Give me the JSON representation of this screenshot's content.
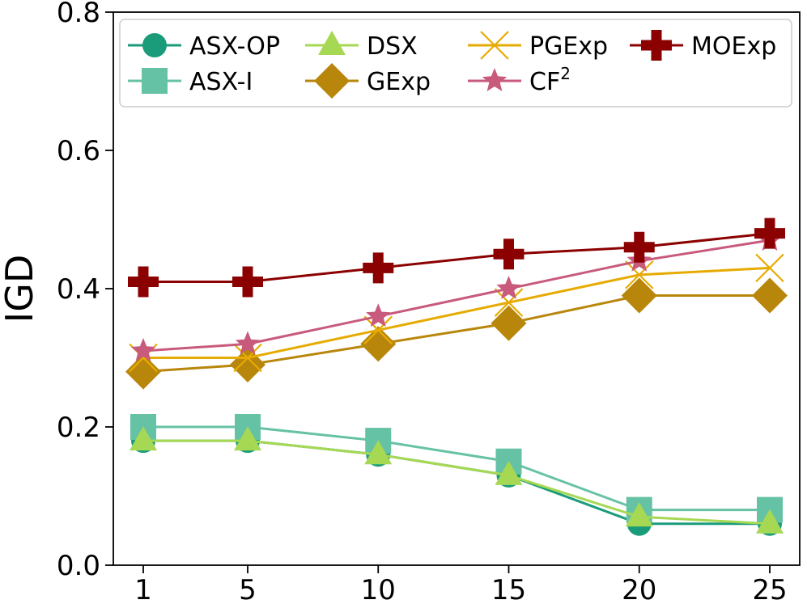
{
  "chart_data": {
    "type": "line",
    "title": "",
    "xlabel": "",
    "ylabel": "IGD",
    "x": [
      1,
      5,
      10,
      15,
      20,
      25
    ],
    "x_tick_labels": [
      "1",
      "5",
      "10",
      "15",
      "20",
      "25"
    ],
    "ylim": [
      0.0,
      0.8
    ],
    "y_ticks": [
      0.0,
      0.2,
      0.4,
      0.6,
      0.8
    ],
    "y_tick_labels": [
      "0.0",
      "0.2",
      "0.4",
      "0.6",
      "0.8"
    ],
    "grid": false,
    "legend_position": "top",
    "series": [
      {
        "name": "ASX-OP",
        "legend_sup": "",
        "color": "#1a9c7b",
        "marker": "circle",
        "values": [
          0.18,
          0.18,
          0.16,
          0.13,
          0.06,
          0.06
        ]
      },
      {
        "name": "ASX-I",
        "legend_sup": "",
        "color": "#66c2a5",
        "marker": "square",
        "values": [
          0.2,
          0.2,
          0.18,
          0.15,
          0.08,
          0.08
        ]
      },
      {
        "name": "DSX",
        "legend_sup": "",
        "color": "#a6d854",
        "marker": "triangle",
        "values": [
          0.18,
          0.18,
          0.16,
          0.13,
          0.07,
          0.06
        ]
      },
      {
        "name": "GExp",
        "legend_sup": "",
        "color": "#b8860b",
        "marker": "diamond",
        "values": [
          0.28,
          0.29,
          0.32,
          0.35,
          0.39,
          0.39
        ]
      },
      {
        "name": "PGExp",
        "legend_sup": "",
        "color": "#e6ab02",
        "marker": "x",
        "values": [
          0.3,
          0.3,
          0.34,
          0.38,
          0.42,
          0.43
        ]
      },
      {
        "name": "CF",
        "legend_sup": "2",
        "color": "#c85a7c",
        "marker": "star",
        "values": [
          0.31,
          0.32,
          0.36,
          0.4,
          0.44,
          0.47
        ]
      },
      {
        "name": "MOExp",
        "legend_sup": "",
        "color": "#8b0000",
        "marker": "plus",
        "values": [
          0.41,
          0.41,
          0.43,
          0.45,
          0.46,
          0.48
        ]
      }
    ]
  }
}
